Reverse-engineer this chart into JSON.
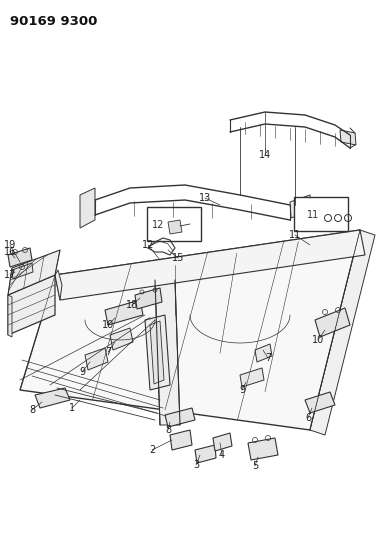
{
  "title": "90169 9300",
  "background_color": "#ffffff",
  "line_color": "#333333",
  "fig_width": 3.92,
  "fig_height": 5.33,
  "dpi": 100
}
